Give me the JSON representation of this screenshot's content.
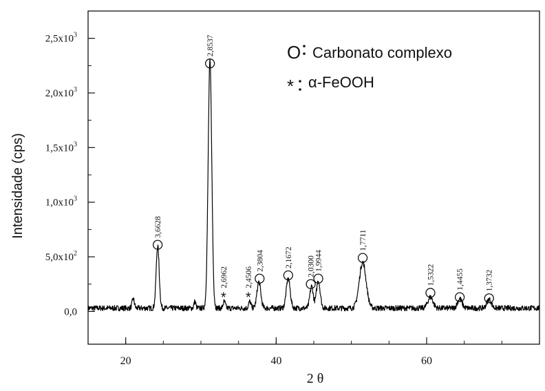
{
  "chart_data": {
    "type": "line",
    "title": "",
    "xlabel": "2 θ",
    "ylabel": "Intensidade (cps)",
    "xlim": [
      15,
      75
    ],
    "ylim": [
      -300,
      2750
    ],
    "x_ticks": [
      20,
      40,
      60
    ],
    "x_tick_labels": [
      "20",
      "40",
      "60"
    ],
    "y_ticks": [
      0,
      500,
      1000,
      1500,
      2000,
      2500
    ],
    "y_tick_labels": [
      {
        "mantissa": "0,0",
        "exp": ""
      },
      {
        "mantissa": "5,0x10",
        "exp": "2"
      },
      {
        "mantissa": "1,0x10",
        "exp": "3"
      },
      {
        "mantissa": "1,5x10",
        "exp": "3"
      },
      {
        "mantissa": "2,0x10",
        "exp": "3"
      },
      {
        "mantissa": "2,5x10",
        "exp": "3"
      }
    ],
    "grid": false,
    "legend_position": "top-right",
    "legend": [
      {
        "symbol": "O",
        "text": "Carbonato complexo"
      },
      {
        "symbol": "*",
        "text": "α-FeOOH"
      }
    ],
    "baseline": 30,
    "noise": 25,
    "peaks": [
      {
        "x": 21.0,
        "height": 85,
        "width": 0.15
      },
      {
        "x": 24.25,
        "height": 570,
        "width": 0.2
      },
      {
        "x": 29.2,
        "height": 60,
        "width": 0.12
      },
      {
        "x": 31.2,
        "height": 2260,
        "width": 0.24
      },
      {
        "x": 33.1,
        "height": 60,
        "width": 0.15
      },
      {
        "x": 36.5,
        "height": 60,
        "width": 0.15
      },
      {
        "x": 37.7,
        "height": 240,
        "width": 0.25
      },
      {
        "x": 41.6,
        "height": 270,
        "width": 0.26
      },
      {
        "x": 44.7,
        "height": 200,
        "width": 0.22
      },
      {
        "x": 45.6,
        "height": 250,
        "width": 0.25
      },
      {
        "x": 51.5,
        "height": 420,
        "width": 0.45
      },
      {
        "x": 60.5,
        "height": 100,
        "width": 0.35
      },
      {
        "x": 64.4,
        "height": 85,
        "width": 0.3
      },
      {
        "x": 68.3,
        "height": 80,
        "width": 0.3
      }
    ],
    "annotations": [
      {
        "x": 24.25,
        "y": 610,
        "marker": "circle",
        "label": "3,6628"
      },
      {
        "x": 31.2,
        "y": 2270,
        "marker": "circle",
        "label": "2,8537"
      },
      {
        "x": 33.0,
        "y": 150,
        "marker": "star",
        "label": "2,6962"
      },
      {
        "x": 36.3,
        "y": 150,
        "marker": "star",
        "label": "2,4506"
      },
      {
        "x": 37.8,
        "y": 300,
        "marker": "circle",
        "label": "2,3804"
      },
      {
        "x": 41.6,
        "y": 330,
        "marker": "circle",
        "label": "2,1672"
      },
      {
        "x": 44.6,
        "y": 250,
        "marker": "circle",
        "label": "2,0300"
      },
      {
        "x": 45.6,
        "y": 300,
        "marker": "circle",
        "label": "1,9944"
      },
      {
        "x": 51.5,
        "y": 490,
        "marker": "circle",
        "label": "1,7711"
      },
      {
        "x": 60.5,
        "y": 170,
        "marker": "circle",
        "label": "1,5322"
      },
      {
        "x": 64.4,
        "y": 130,
        "marker": "circle",
        "label": "1,4455"
      },
      {
        "x": 68.3,
        "y": 120,
        "marker": "circle",
        "label": "1,3732"
      }
    ]
  }
}
